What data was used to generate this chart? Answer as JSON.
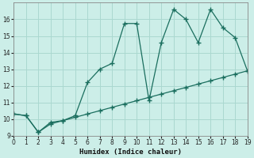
{
  "xlabel": "Humidex (Indice chaleur)",
  "background_color": "#cceee8",
  "grid_color": "#aad8d0",
  "line_color": "#1a6e5e",
  "x": [
    0,
    1,
    2,
    3,
    4,
    5,
    6,
    7,
    8,
    9,
    10,
    11,
    12,
    13,
    14,
    15,
    16,
    17,
    18,
    19
  ],
  "y_upper": [
    10.3,
    10.2,
    9.2,
    9.8,
    9.9,
    10.2,
    12.2,
    13.0,
    13.35,
    15.75,
    15.75,
    11.1,
    14.6,
    16.6,
    16.0,
    14.6,
    16.6,
    15.5,
    14.9,
    12.9
  ],
  "y_lower": [
    10.3,
    10.2,
    9.2,
    9.7,
    9.9,
    10.1,
    10.3,
    10.5,
    10.7,
    10.9,
    11.1,
    11.3,
    11.5,
    11.7,
    11.9,
    12.1,
    12.3,
    12.5,
    12.7,
    12.9
  ],
  "xlim": [
    0,
    19
  ],
  "ylim": [
    9,
    17
  ],
  "yticks": [
    9,
    10,
    11,
    12,
    13,
    14,
    15,
    16
  ],
  "xticks": [
    0,
    1,
    2,
    3,
    4,
    5,
    6,
    7,
    8,
    9,
    10,
    11,
    12,
    13,
    14,
    15,
    16,
    17,
    18,
    19
  ]
}
